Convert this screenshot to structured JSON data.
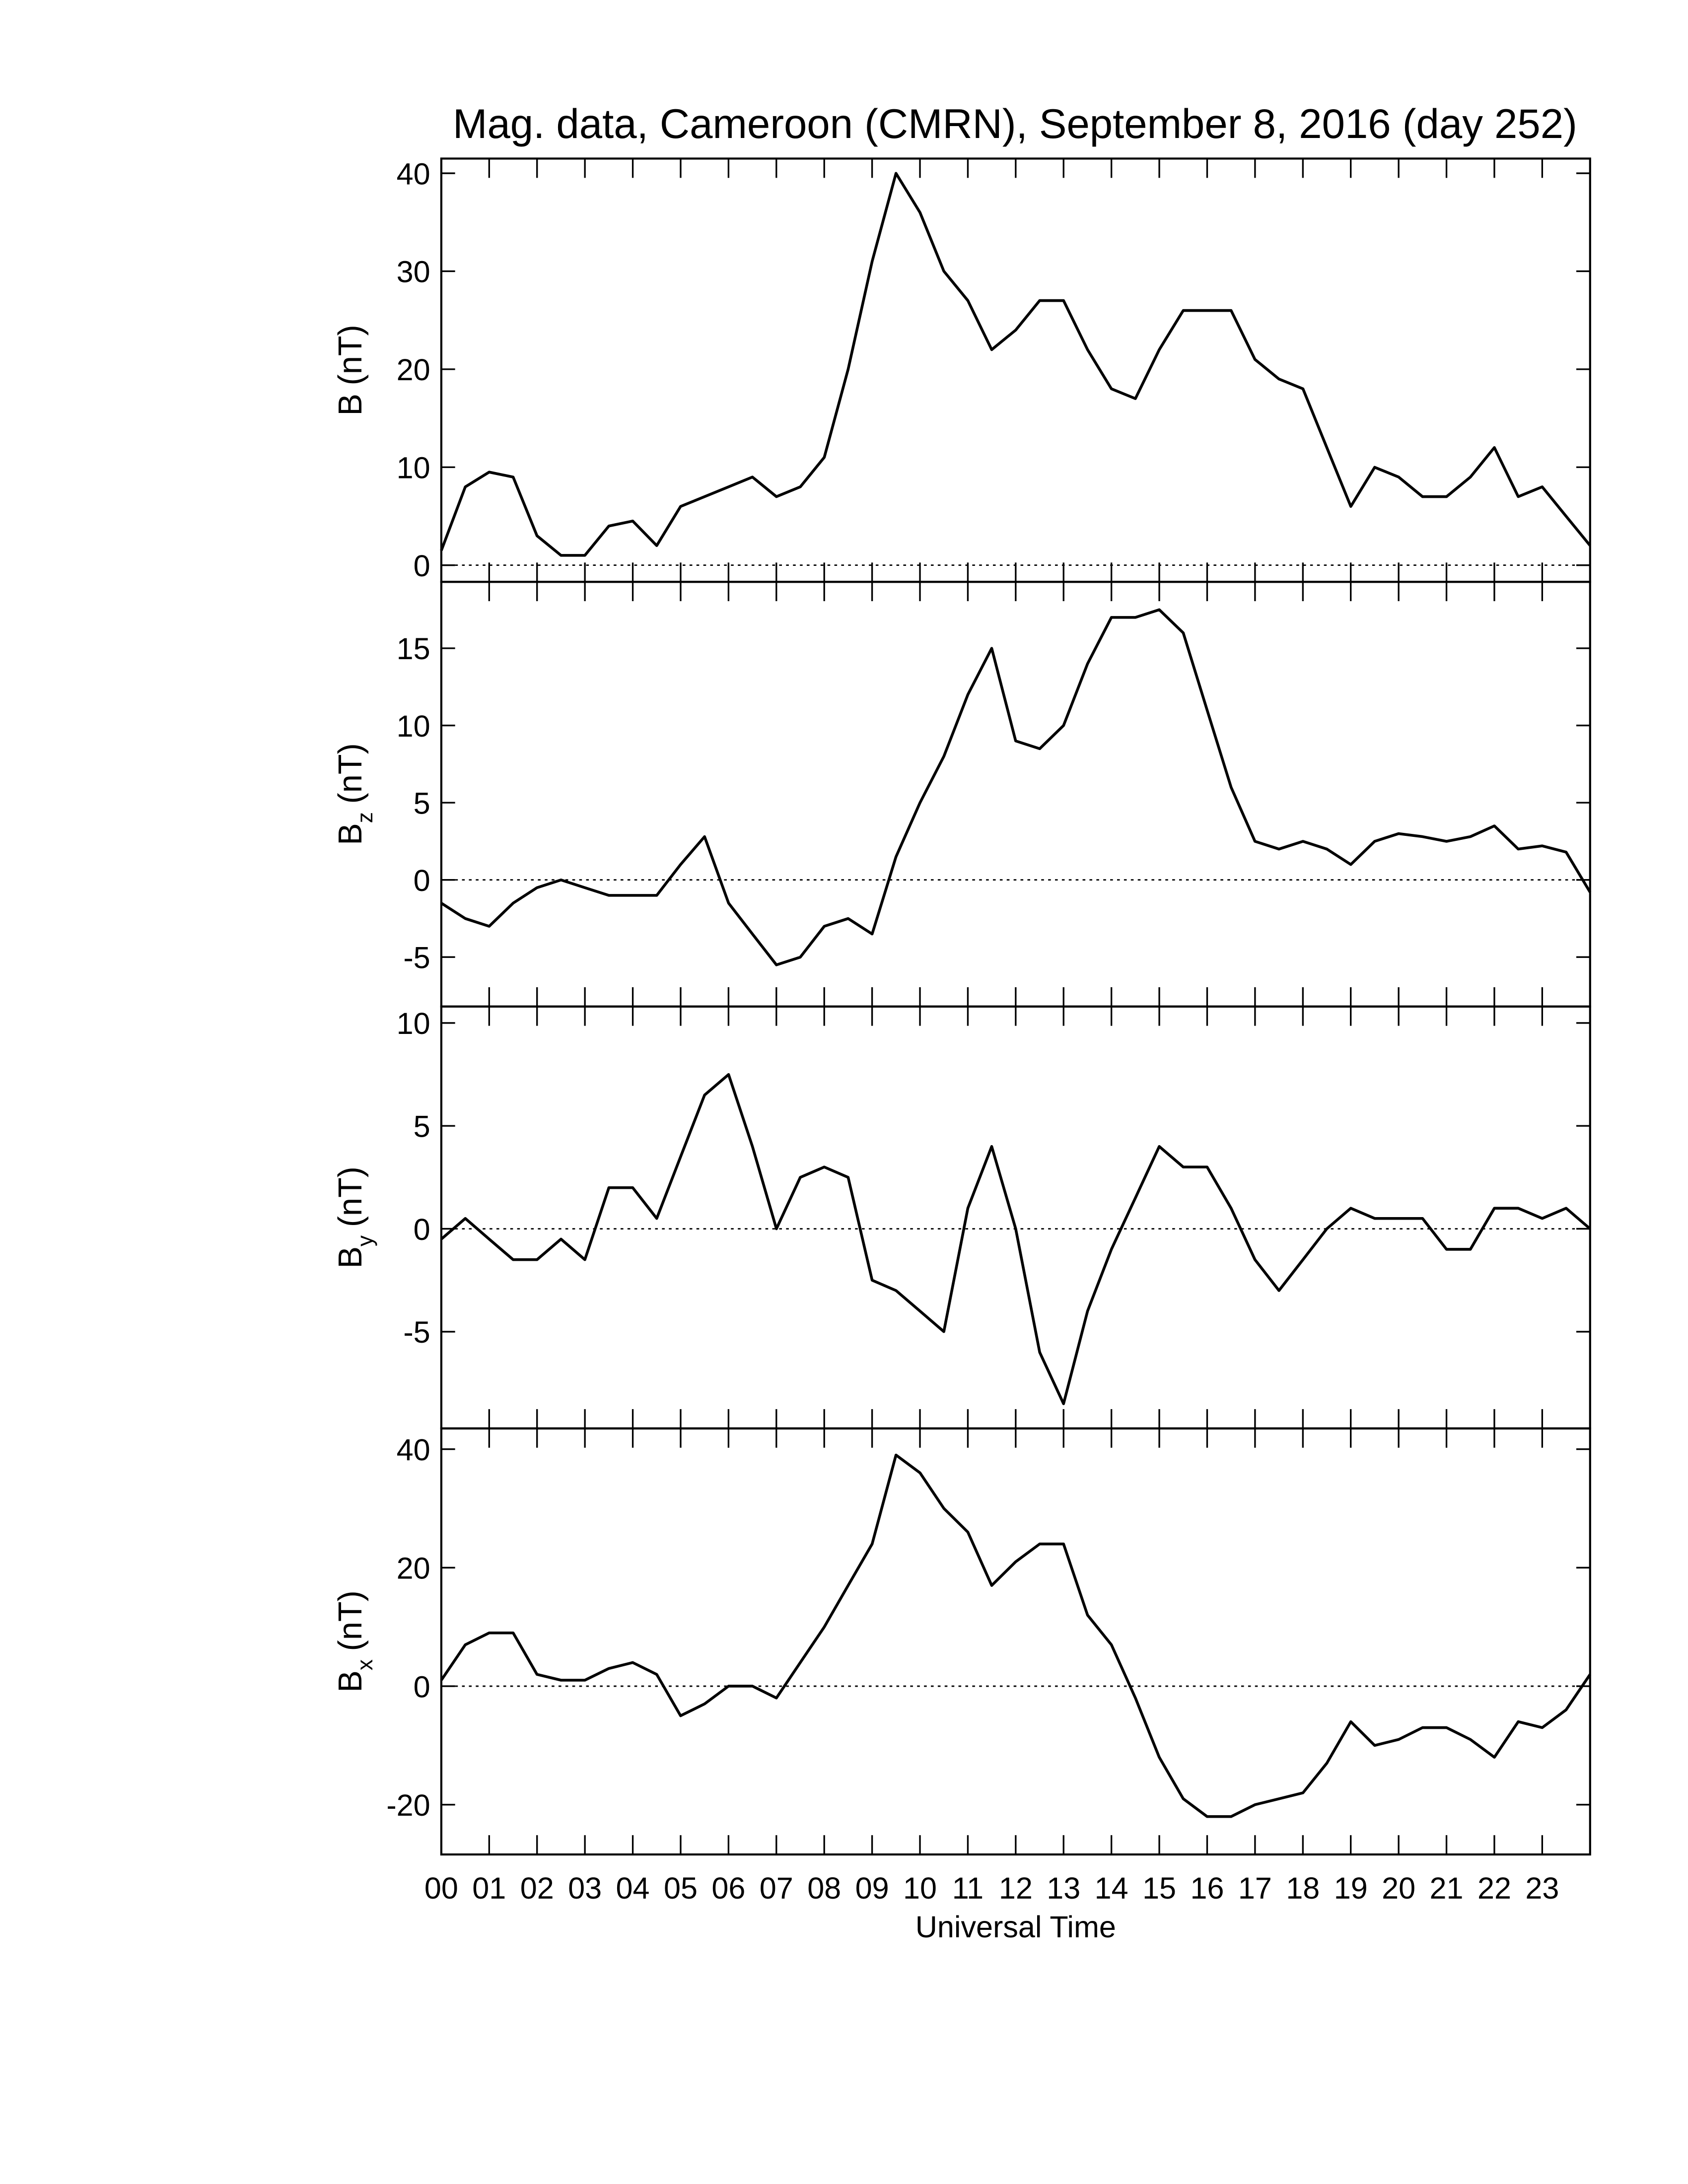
{
  "chart_data": [
    {
      "type": "line",
      "title": "Mag. data, Cameroon (CMRN), September 8, 2016 (day 252)",
      "ylabel": "B",
      "ylabel_unit": "(nT)",
      "color": "#000000",
      "xlim": [
        0,
        24
      ],
      "ylim": [
        -1.7,
        41.5
      ],
      "yticks": [
        0,
        10,
        20,
        30,
        40
      ],
      "x": [
        0,
        0.5,
        1,
        1.5,
        2,
        2.5,
        3,
        3.5,
        4,
        4.5,
        5,
        5.5,
        6,
        6.5,
        7,
        7.5,
        8,
        8.5,
        9,
        9.5,
        10,
        10.5,
        11,
        11.5,
        12,
        12.5,
        13,
        13.5,
        14,
        14.5,
        15,
        15.5,
        16,
        16.5,
        17,
        17.5,
        18,
        18.5,
        19,
        19.5,
        20,
        20.5,
        21,
        21.5,
        22,
        22.5,
        23,
        23.5,
        24
      ],
      "values": [
        1.5,
        8,
        9.5,
        9,
        3,
        1,
        1,
        4,
        4.5,
        2,
        6,
        7,
        8,
        9,
        7,
        8,
        11,
        20,
        31,
        40,
        36,
        30,
        27,
        22,
        24,
        27,
        27,
        22,
        18,
        17,
        22,
        26,
        26,
        26,
        21,
        19,
        18,
        12,
        6,
        10,
        9,
        7,
        7,
        9,
        12,
        7,
        8,
        5,
        2
      ]
    },
    {
      "type": "line",
      "ylabel": "B",
      "ylabel_sub": "z",
      "ylabel_unit": "(nT)",
      "color": "#000000",
      "xlim": [
        0,
        24
      ],
      "ylim": [
        -8.2,
        19.3
      ],
      "yticks": [
        -5,
        0,
        5,
        10,
        15
      ],
      "x": [
        0,
        0.5,
        1,
        1.5,
        2,
        2.5,
        3,
        3.5,
        4,
        4.5,
        5,
        5.5,
        6,
        6.5,
        7,
        7.5,
        8,
        8.5,
        9,
        9.5,
        10,
        10.5,
        11,
        11.5,
        12,
        12.5,
        13,
        13.5,
        14,
        14.5,
        15,
        15.5,
        16,
        16.5,
        17,
        17.5,
        18,
        18.5,
        19,
        19.5,
        20,
        20.5,
        21,
        21.5,
        22,
        22.5,
        23,
        23.5,
        24
      ],
      "values": [
        -1.5,
        -2.5,
        -3,
        -1.5,
        -0.5,
        0,
        -0.5,
        -1,
        -1,
        -1,
        1,
        2.8,
        -1.5,
        -3.5,
        -5.5,
        -5,
        -3,
        -2.5,
        -3.5,
        1.5,
        5,
        8,
        12,
        15,
        9,
        8.5,
        10,
        14,
        17,
        17,
        17.5,
        16,
        11,
        6,
        2.5,
        2,
        2.5,
        2,
        1,
        2.5,
        3,
        2.8,
        2.5,
        2.8,
        3.5,
        2,
        2.2,
        1.8,
        -0.8
      ]
    },
    {
      "type": "line",
      "ylabel": "B",
      "ylabel_sub": "y",
      "ylabel_unit": "(nT)",
      "color": "#000000",
      "xlim": [
        0,
        24
      ],
      "ylim": [
        -9.7,
        10.8
      ],
      "yticks": [
        -5,
        0,
        5,
        10
      ],
      "x": [
        0,
        0.5,
        1,
        1.5,
        2,
        2.5,
        3,
        3.5,
        4,
        4.5,
        5,
        5.5,
        6,
        6.5,
        7,
        7.5,
        8,
        8.5,
        9,
        9.5,
        10,
        10.5,
        11,
        11.5,
        12,
        12.5,
        13,
        13.5,
        14,
        14.5,
        15,
        15.5,
        16,
        16.5,
        17,
        17.5,
        18,
        18.5,
        19,
        19.5,
        20,
        20.5,
        21,
        21.5,
        22,
        22.5,
        23,
        23.5,
        24
      ],
      "values": [
        -0.5,
        0.5,
        -0.5,
        -1.5,
        -1.5,
        -0.5,
        -1.5,
        2,
        2,
        0.5,
        3.5,
        6.5,
        7.5,
        4,
        0,
        2.5,
        3,
        2.5,
        -2.5,
        -3,
        -4,
        -5,
        1,
        4,
        0,
        -6,
        -8.5,
        -4,
        -1,
        1.5,
        4,
        3,
        3,
        1,
        -1.5,
        -3,
        -1.5,
        0,
        1,
        0.5,
        0.5,
        0.5,
        -1,
        -1,
        1,
        1,
        0.5,
        1,
        0
      ]
    },
    {
      "type": "line",
      "ylabel": "B",
      "ylabel_sub": "x",
      "ylabel_unit": "(nT)",
      "xlabel": "Universal Time",
      "color": "#000000",
      "xlim": [
        0,
        24
      ],
      "ylim": [
        -28.4,
        43.5
      ],
      "yticks": [
        -20,
        0,
        20,
        40
      ],
      "xticks": [
        {
          "value": 0,
          "label": "00"
        },
        {
          "value": 1,
          "label": "01"
        },
        {
          "value": 2,
          "label": "02"
        },
        {
          "value": 3,
          "label": "03"
        },
        {
          "value": 4,
          "label": "04"
        },
        {
          "value": 5,
          "label": "05"
        },
        {
          "value": 6,
          "label": "06"
        },
        {
          "value": 7,
          "label": "07"
        },
        {
          "value": 8,
          "label": "08"
        },
        {
          "value": 9,
          "label": "09"
        },
        {
          "value": 10,
          "label": "10"
        },
        {
          "value": 11,
          "label": "11"
        },
        {
          "value": 12,
          "label": "12"
        },
        {
          "value": 13,
          "label": "13"
        },
        {
          "value": 14,
          "label": "14"
        },
        {
          "value": 15,
          "label": "15"
        },
        {
          "value": 16,
          "label": "16"
        },
        {
          "value": 17,
          "label": "17"
        },
        {
          "value": 18,
          "label": "18"
        },
        {
          "value": 19,
          "label": "19"
        },
        {
          "value": 20,
          "label": "20"
        },
        {
          "value": 21,
          "label": "21"
        },
        {
          "value": 22,
          "label": "22"
        },
        {
          "value": 23,
          "label": "23"
        }
      ],
      "x": [
        0,
        0.5,
        1,
        1.5,
        2,
        2.5,
        3,
        3.5,
        4,
        4.5,
        5,
        5.5,
        6,
        6.5,
        7,
        7.5,
        8,
        8.5,
        9,
        9.5,
        10,
        10.5,
        11,
        11.5,
        12,
        12.5,
        13,
        13.5,
        14,
        14.5,
        15,
        15.5,
        16,
        16.5,
        17,
        17.5,
        18,
        18.5,
        19,
        19.5,
        20,
        20.5,
        21,
        21.5,
        22,
        22.5,
        23,
        23.5,
        24
      ],
      "values": [
        1,
        7,
        9,
        9,
        2,
        1,
        1,
        3,
        4,
        2,
        -5,
        -3,
        0,
        0,
        -2,
        4,
        10,
        17,
        24,
        39,
        36,
        30,
        26,
        17,
        21,
        24,
        24,
        12,
        7,
        -2,
        -12,
        -19,
        -22,
        -22,
        -20,
        -19,
        -18,
        -13,
        -6,
        -10,
        -9,
        -7,
        -7,
        -9,
        -12,
        -6,
        -7,
        -4,
        2
      ]
    }
  ]
}
